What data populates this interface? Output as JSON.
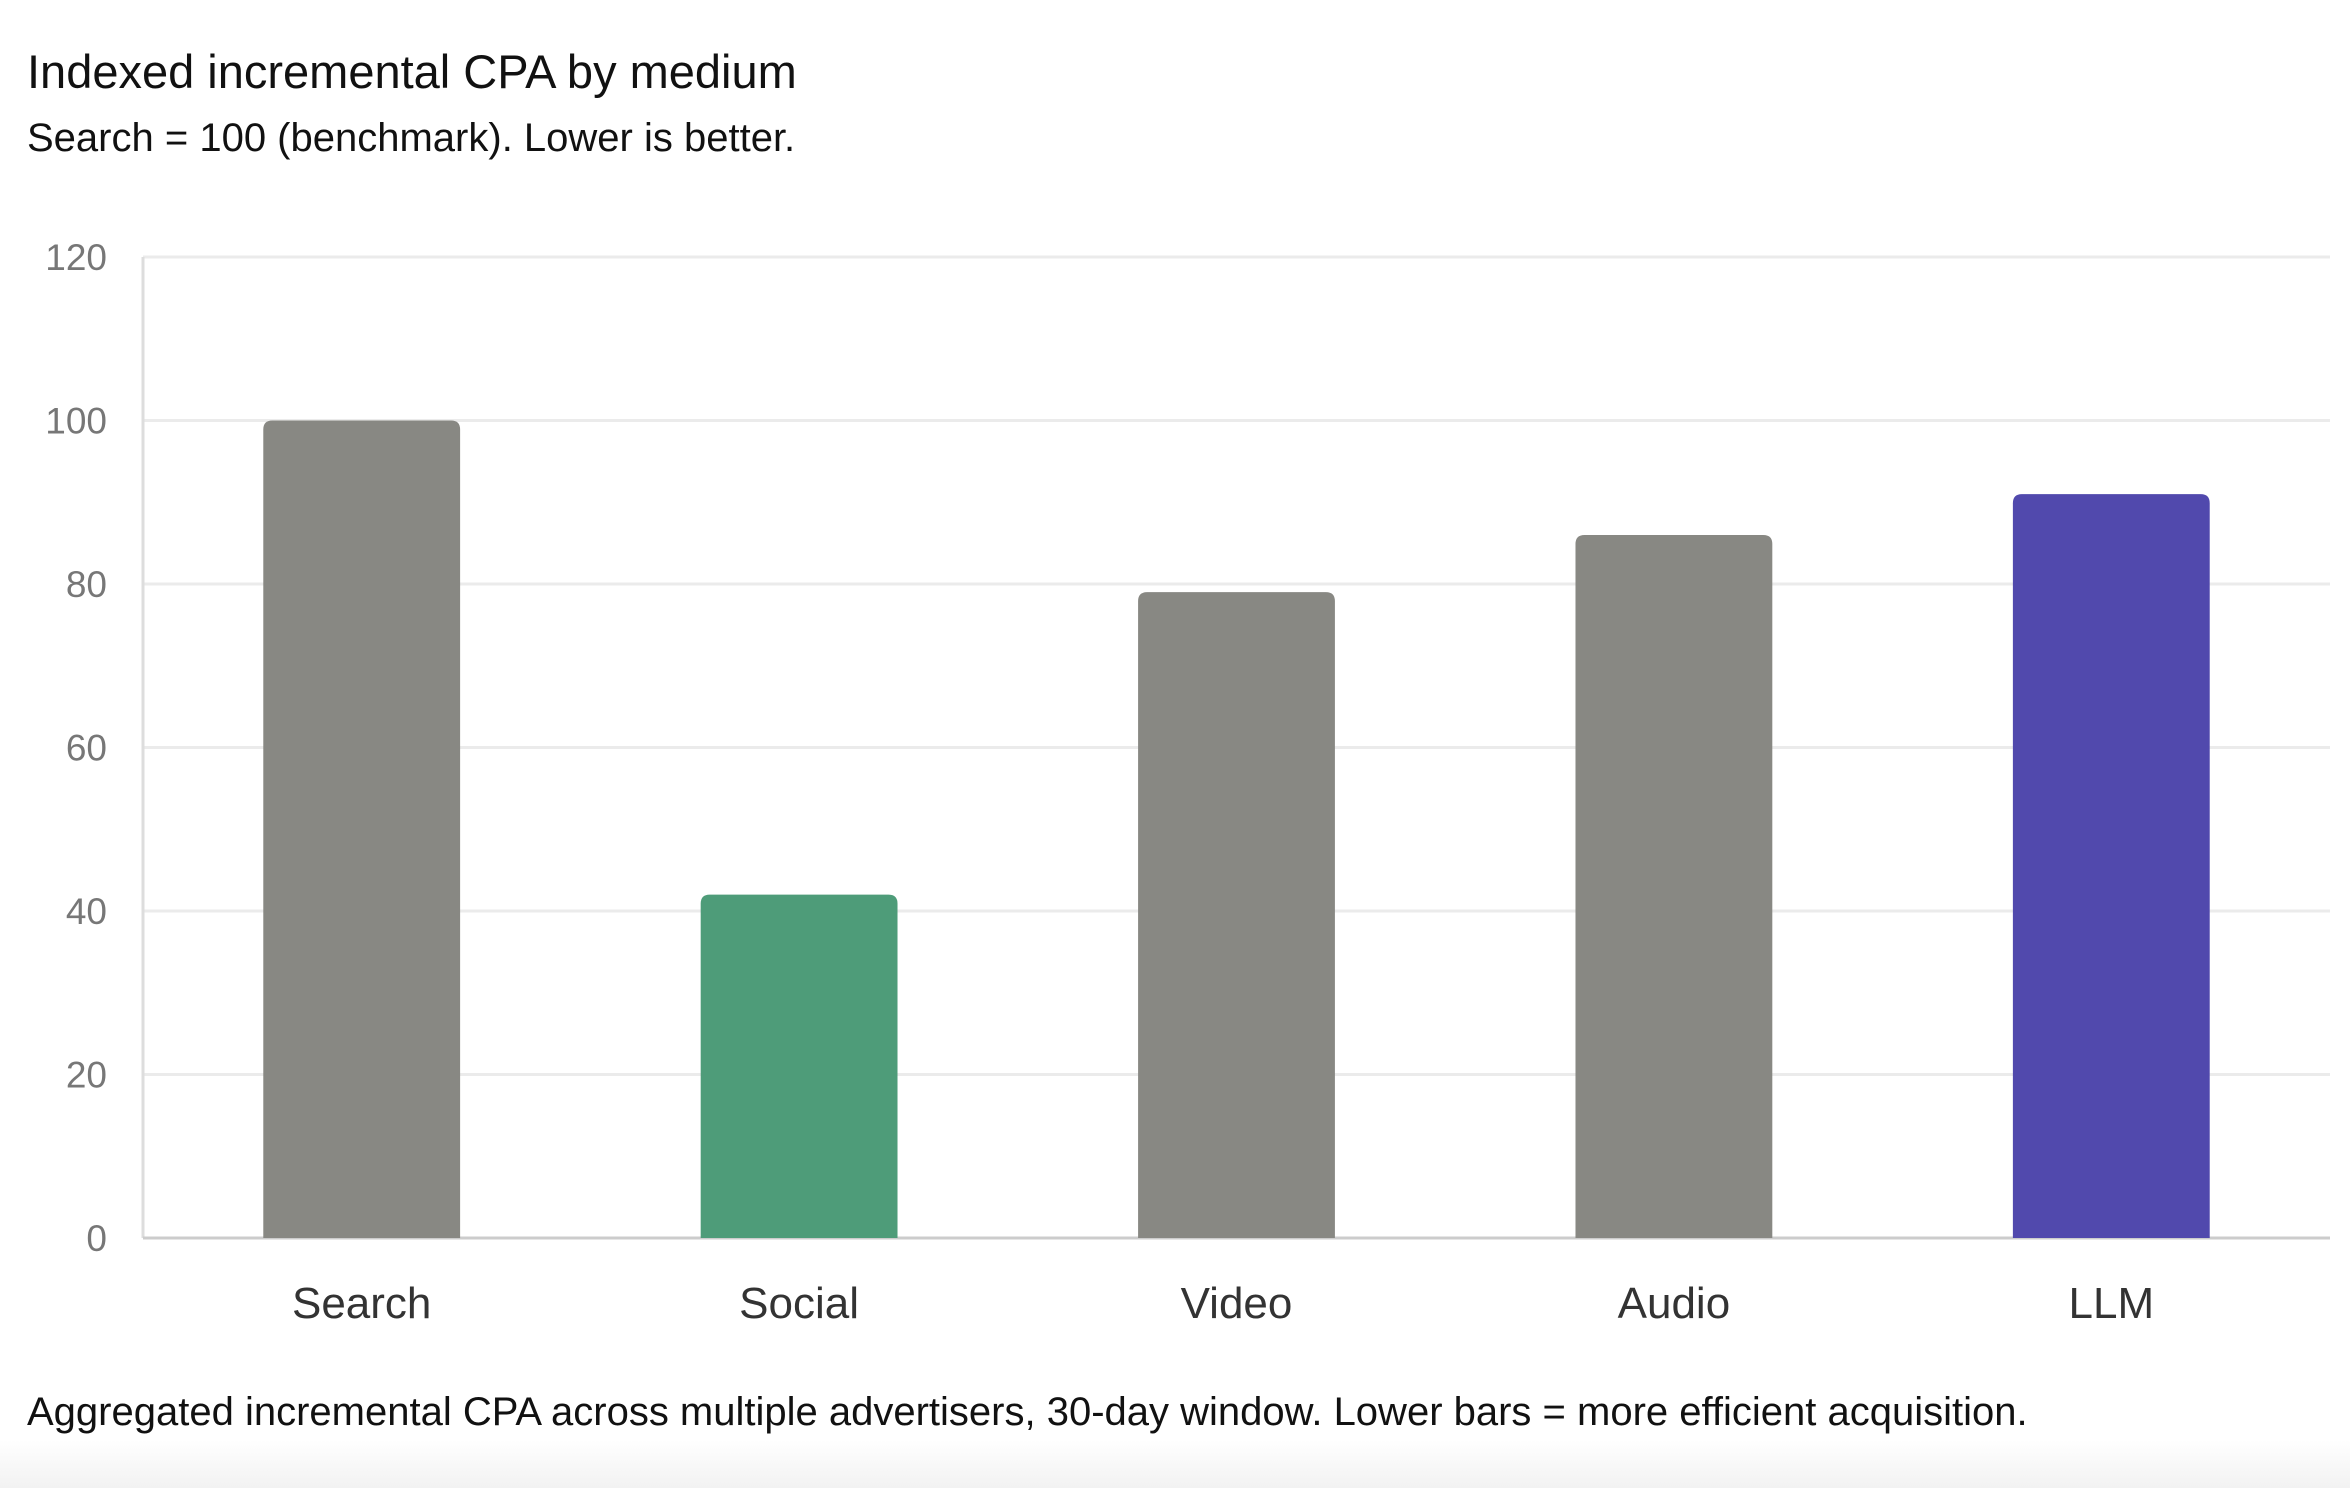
{
  "header": {
    "title": "Indexed incremental CPA by medium",
    "subtitle": "Search = 100 (benchmark). Lower is better."
  },
  "footer": {
    "caption": "Aggregated incremental CPA across multiple advertisers, 30-day window. Lower bars = more efficient acquisition."
  },
  "chart_data": {
    "type": "bar",
    "title": "Indexed incremental CPA by medium",
    "subtitle": "Search = 100 (benchmark). Lower is better.",
    "categories": [
      "Search",
      "Social",
      "Video",
      "Audio",
      "LLM"
    ],
    "values": [
      100,
      42,
      79,
      86,
      91
    ],
    "colors": [
      "#888883",
      "#4e9c79",
      "#888883",
      "#888883",
      "#5149ad"
    ],
    "ylim": [
      0,
      120
    ],
    "yticks": [
      0,
      20,
      40,
      60,
      80,
      100,
      120
    ],
    "grid": true,
    "legend": "none"
  }
}
